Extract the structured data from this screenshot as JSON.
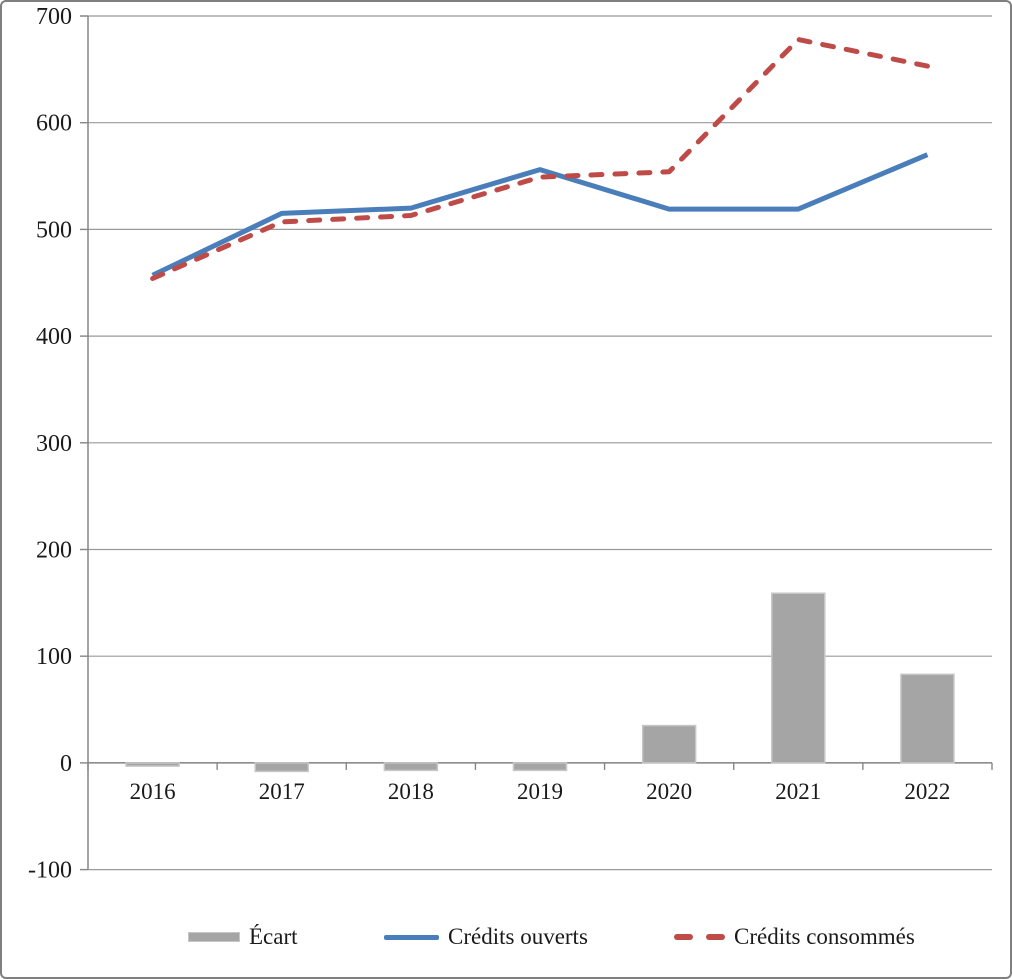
{
  "chart_data": {
    "type": "combo",
    "title": "",
    "xlabel": "",
    "ylabel": "",
    "categories": [
      "2016",
      "2017",
      "2018",
      "2019",
      "2020",
      "2021",
      "2022"
    ],
    "series": [
      {
        "name": "Écart",
        "type": "bar",
        "color": "#a5a5a5",
        "border_color": "#c6c6c6",
        "values": [
          -3,
          -8,
          -7,
          -7,
          35,
          159,
          83
        ]
      },
      {
        "name": "Crédits ouverts",
        "type": "line",
        "style": "solid",
        "color": "#4a7ebb",
        "values": [
          457,
          515,
          520,
          556,
          519,
          519,
          570
        ]
      },
      {
        "name": "Crédits consommés",
        "type": "line",
        "style": "dashed",
        "color": "#be4b48",
        "values": [
          454,
          507,
          513,
          549,
          554,
          678,
          653
        ]
      }
    ],
    "ylim": [
      -100,
      700
    ],
    "yticks": [
      700,
      600,
      500,
      400,
      300,
      200,
      100,
      0,
      -100
    ],
    "grid": true,
    "gridline_color": "#9a9a9a",
    "axis_color": "#868686",
    "text_color": "#1a1a1a",
    "legend_position": "bottom"
  }
}
